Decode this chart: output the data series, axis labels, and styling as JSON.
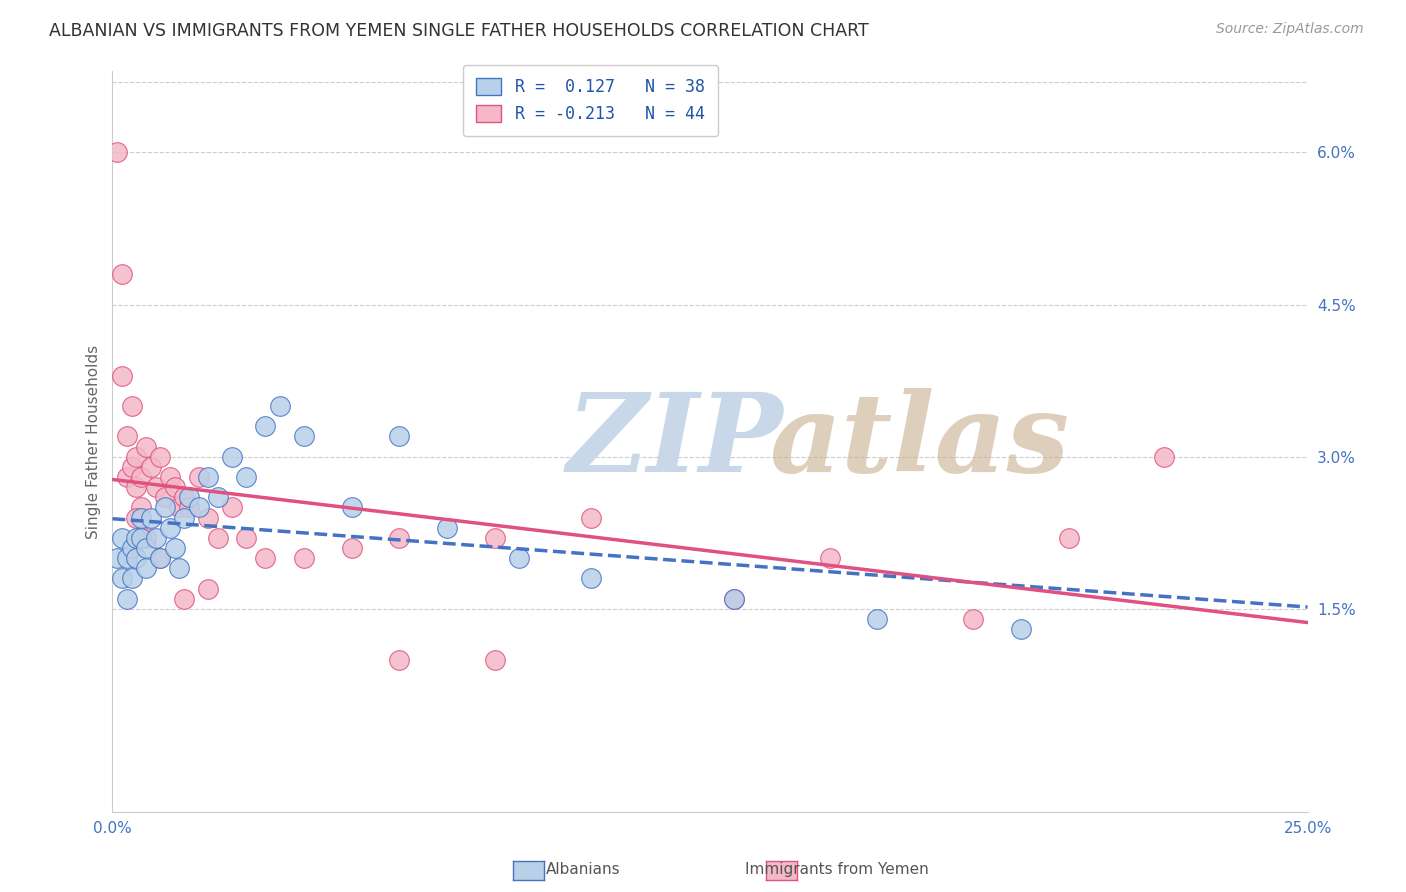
{
  "title": "ALBANIAN VS IMMIGRANTS FROM YEMEN SINGLE FATHER HOUSEHOLDS CORRELATION CHART",
  "source": "Source: ZipAtlas.com",
  "ylabel": "Single Father Households",
  "ylabel_right_ticks": [
    "1.5%",
    "3.0%",
    "4.5%",
    "6.0%"
  ],
  "ylabel_right_values": [
    0.015,
    0.03,
    0.045,
    0.06
  ],
  "xlim": [
    0.0,
    0.25
  ],
  "ylim": [
    -0.005,
    0.068
  ],
  "legend_r1": "R =  0.127   N = 38",
  "legend_r2": "R = -0.213   N = 44",
  "color_albanian_fill": "#b8d0e8",
  "color_albanian_edge": "#4472c4",
  "color_yemen_fill": "#f4b8c8",
  "color_yemen_edge": "#e05080",
  "color_albanian_line": "#4472c4",
  "color_yemen_line": "#e05080",
  "background_color": "#ffffff",
  "grid_color": "#cccccc",
  "albanian_x": [
    0.001,
    0.002,
    0.002,
    0.003,
    0.003,
    0.004,
    0.004,
    0.005,
    0.005,
    0.006,
    0.006,
    0.007,
    0.007,
    0.008,
    0.009,
    0.01,
    0.011,
    0.012,
    0.013,
    0.014,
    0.015,
    0.016,
    0.018,
    0.02,
    0.022,
    0.025,
    0.028,
    0.032,
    0.035,
    0.04,
    0.05,
    0.06,
    0.07,
    0.085,
    0.1,
    0.13,
    0.16,
    0.19
  ],
  "albanian_y": [
    0.02,
    0.022,
    0.018,
    0.02,
    0.016,
    0.021,
    0.018,
    0.022,
    0.02,
    0.024,
    0.022,
    0.021,
    0.019,
    0.024,
    0.022,
    0.02,
    0.025,
    0.023,
    0.021,
    0.019,
    0.024,
    0.026,
    0.025,
    0.028,
    0.026,
    0.03,
    0.028,
    0.033,
    0.035,
    0.032,
    0.025,
    0.032,
    0.023,
    0.02,
    0.018,
    0.016,
    0.014,
    0.013
  ],
  "yemen_x": [
    0.001,
    0.002,
    0.002,
    0.003,
    0.003,
    0.004,
    0.004,
    0.005,
    0.005,
    0.006,
    0.006,
    0.007,
    0.008,
    0.009,
    0.01,
    0.011,
    0.012,
    0.013,
    0.014,
    0.015,
    0.016,
    0.018,
    0.02,
    0.022,
    0.025,
    0.028,
    0.032,
    0.04,
    0.05,
    0.06,
    0.08,
    0.1,
    0.13,
    0.15,
    0.18,
    0.2,
    0.22,
    0.005,
    0.007,
    0.01,
    0.015,
    0.02,
    0.06,
    0.08
  ],
  "yemen_y": [
    0.06,
    0.048,
    0.038,
    0.032,
    0.028,
    0.035,
    0.029,
    0.03,
    0.027,
    0.028,
    0.025,
    0.031,
    0.029,
    0.027,
    0.03,
    0.026,
    0.028,
    0.027,
    0.025,
    0.026,
    0.025,
    0.028,
    0.024,
    0.022,
    0.025,
    0.022,
    0.02,
    0.02,
    0.021,
    0.022,
    0.022,
    0.024,
    0.016,
    0.02,
    0.014,
    0.022,
    0.03,
    0.024,
    0.022,
    0.02,
    0.016,
    0.017,
    0.01,
    0.01
  ],
  "watermark_zip_color": "#c8d8e8",
  "watermark_atlas_color": "#c8b090"
}
